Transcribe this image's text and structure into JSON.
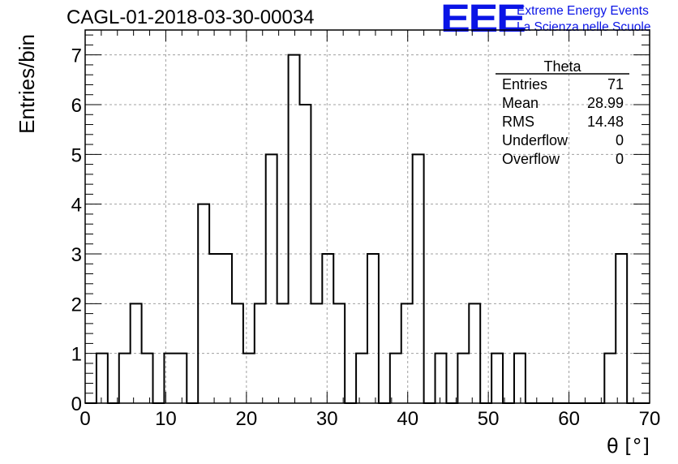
{
  "header": {
    "run_title": "CAGL-01-2018-03-30-00034",
    "logo_mark": "EEE",
    "logo_line1": "Extreme Energy Events",
    "logo_line2": "La Scienza nelle Scuole"
  },
  "colors": {
    "accent": "#0a14e6",
    "line": "#000000",
    "grid": "#a0a0a0"
  },
  "stats": {
    "name": "Theta",
    "rows": [
      {
        "label": "Entries",
        "value": "71"
      },
      {
        "label": "Mean",
        "value": "28.99"
      },
      {
        "label": "RMS",
        "value": "14.48"
      },
      {
        "label": "Underflow",
        "value": "0"
      },
      {
        "label": "Overflow",
        "value": "0"
      }
    ]
  },
  "chart_data": {
    "type": "histogram",
    "title": "CAGL-01-2018-03-30-00034",
    "xlabel": "θ [°]",
    "ylabel": "Entries/bin",
    "xlim": [
      0,
      70
    ],
    "ylim": [
      0,
      7.5
    ],
    "xticks": [
      0,
      10,
      20,
      30,
      40,
      50,
      60,
      70
    ],
    "yticks": [
      0,
      1,
      2,
      3,
      4,
      5,
      6,
      7
    ],
    "grid": true,
    "bin_edges": [
      0,
      1.4,
      2.8,
      4.2,
      5.6,
      7,
      8.4,
      9.8,
      11.2,
      12.6,
      14,
      15.4,
      16.8,
      18.2,
      19.6,
      21,
      22.4,
      23.8,
      25.2,
      26.6,
      28,
      29.4,
      30.8,
      32.2,
      33.6,
      35,
      36.4,
      37.8,
      39.2,
      40.6,
      42,
      43.4,
      44.8,
      46.2,
      47.6,
      49,
      50.4,
      51.8,
      53.2,
      54.6,
      56,
      57.4,
      58.8,
      60.2,
      61.6,
      63,
      64.4,
      65.8,
      67.2,
      68.6,
      70
    ],
    "values": [
      0,
      1,
      0,
      1,
      2,
      1,
      0,
      1,
      1,
      0,
      4,
      3,
      3,
      2,
      1,
      2,
      5,
      2,
      7,
      6,
      2,
      3,
      2,
      0,
      1,
      3,
      0,
      1,
      2,
      5,
      0,
      1,
      0,
      1,
      2,
      0,
      1,
      0,
      1,
      0,
      0,
      0,
      0,
      0,
      0,
      0,
      1,
      3,
      0,
      0
    ]
  }
}
